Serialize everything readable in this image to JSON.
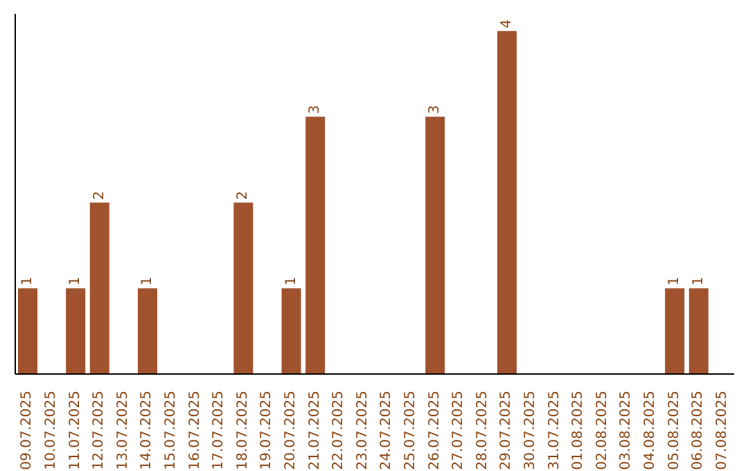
{
  "chart_data": {
    "type": "bar",
    "categories": [
      "09.07.2025",
      "10.07.2025",
      "11.07.2025",
      "12.07.2025",
      "13.07.2025",
      "14.07.2025",
      "15.07.2025",
      "16.07.2025",
      "17.07.2025",
      "18.07.2025",
      "19.07.2025",
      "20.07.2025",
      "21.07.2025",
      "22.07.2025",
      "23.07.2025",
      "24.07.2025",
      "25.07.2025",
      "26.07.2025",
      "27.07.2025",
      "28.07.2025",
      "29.07.2025",
      "30.07.2025",
      "31.07.2025",
      "01.08.2025",
      "02.08.2025",
      "03.08.2025",
      "04.08.2025",
      "05.08.2025",
      "06.08.2025",
      "07.08.2025"
    ],
    "values": [
      1,
      0,
      1,
      2,
      0,
      1,
      0,
      0,
      0,
      2,
      0,
      1,
      3,
      0,
      0,
      0,
      0,
      3,
      0,
      0,
      4,
      0,
      0,
      0,
      0,
      0,
      0,
      1,
      1,
      0
    ],
    "value_labels": [
      "1",
      null,
      "1",
      "2",
      null,
      "1",
      null,
      null,
      null,
      "2",
      null,
      "1",
      "3",
      null,
      null,
      null,
      null,
      "3",
      null,
      null,
      "4",
      null,
      null,
      null,
      null,
      null,
      null,
      "1",
      "1",
      null
    ],
    "color": "#a0522d",
    "ylim": [
      0,
      4.2
    ],
    "tick_labels": "x",
    "grid": false,
    "legend": false
  }
}
